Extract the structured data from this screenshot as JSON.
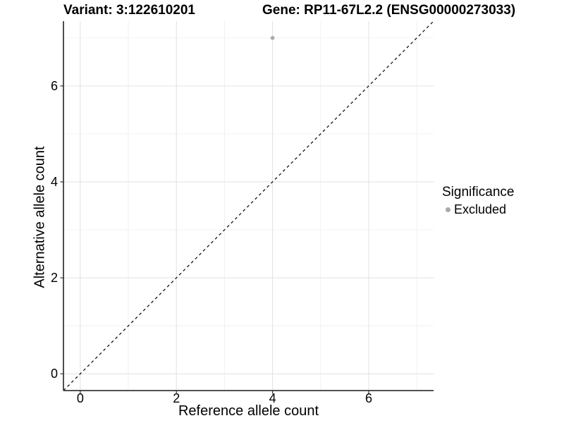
{
  "header": {
    "variant_title": "Variant: 3:122610201",
    "gene_title": "Gene: RP11-67L2.2 (ENSG00000273033)"
  },
  "chart_data": {
    "type": "scatter",
    "title": "Variant: 3:122610201   Gene: RP11-67L2.2 (ENSG00000273033)",
    "xlabel": "Reference allele count",
    "ylabel": "Alternative allele count",
    "xlim": [
      -0.35,
      7.35
    ],
    "ylim": [
      -0.35,
      7.35
    ],
    "x_ticks": [
      0,
      2,
      4,
      6
    ],
    "y_ticks": [
      0,
      2,
      4,
      6
    ],
    "x_minor_ticks": [
      1,
      3,
      5,
      7
    ],
    "y_minor_ticks": [
      1,
      3,
      5,
      7
    ],
    "grid": true,
    "series": [
      {
        "name": "Excluded",
        "color": "#a9a9a9",
        "points": [
          {
            "x": 4,
            "y": 7
          }
        ]
      }
    ],
    "reference_line": {
      "type": "identity",
      "slope": 1,
      "intercept": 0,
      "style": "dashed",
      "color": "#000000"
    },
    "legend": {
      "title": "Significance",
      "position": "right",
      "items": [
        {
          "label": "Excluded",
          "color": "#a9a9a9"
        }
      ]
    }
  },
  "colors": {
    "background": "#ffffff",
    "grid_major": "#e4e4e4",
    "grid_minor": "#efefef",
    "axis_line": "#3a3a3a",
    "tick_mark": "#333333",
    "text": "#000000",
    "point": "#a9a9a9"
  }
}
